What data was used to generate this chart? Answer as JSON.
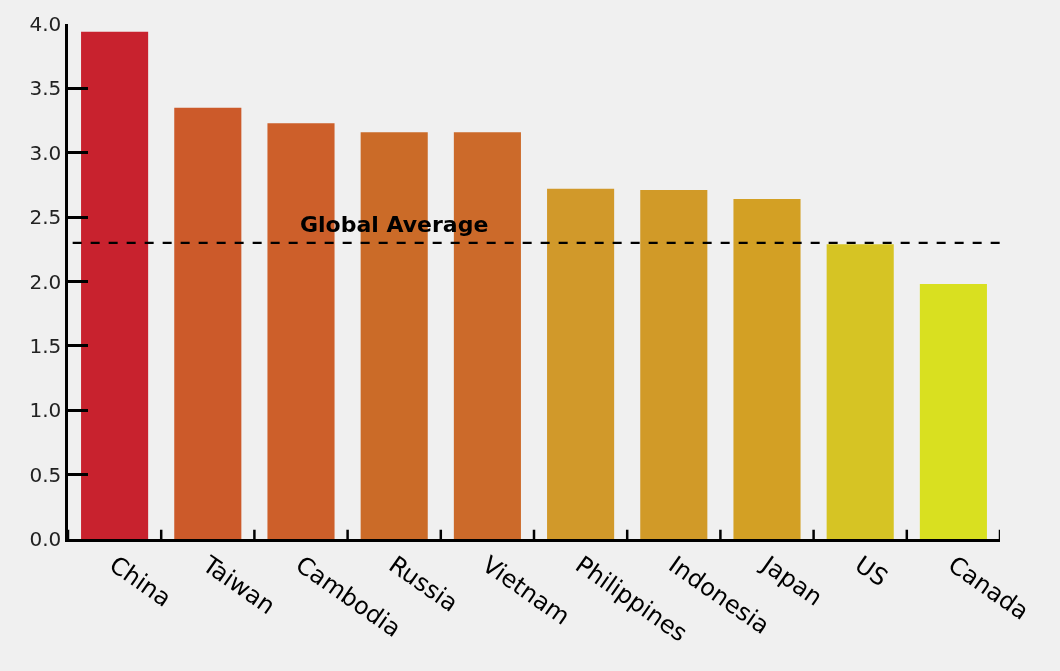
{
  "chart_data": {
    "type": "bar",
    "categories": [
      "China",
      "Taiwan",
      "Cambodia",
      "Russia",
      "Vietnam",
      "Philippines",
      "Indonesia",
      "Japan",
      "US",
      "Canada"
    ],
    "values": [
      3.94,
      3.35,
      3.23,
      3.16,
      3.16,
      2.72,
      2.71,
      2.64,
      2.29,
      1.98
    ],
    "colors": [
      "#c8222e",
      "#cc5a2a",
      "#cd5f2a",
      "#cb6b28",
      "#cc6a2a",
      "#d1992a",
      "#d19a28",
      "#d3a024",
      "#d6c424",
      "#d9e020"
    ],
    "ylim": [
      0,
      4
    ],
    "yticks": [
      {
        "value": 0,
        "label": "0.0"
      },
      {
        "value": 0.5,
        "label": "0.5"
      },
      {
        "value": 1,
        "label": "1.0"
      },
      {
        "value": 1.5,
        "label": "1.5"
      },
      {
        "value": 2,
        "label": "2.0"
      },
      {
        "value": 2.5,
        "label": "2.5"
      },
      {
        "value": 3,
        "label": "3.0"
      },
      {
        "value": 3.5,
        "label": "3.5"
      },
      {
        "value": 4,
        "label": "4.0"
      }
    ],
    "ref_lines": [
      {
        "axis": "y",
        "value": 2.3,
        "label": "Global Average",
        "color": "#000000",
        "line_style": "dashed"
      }
    ],
    "grid": false
  }
}
